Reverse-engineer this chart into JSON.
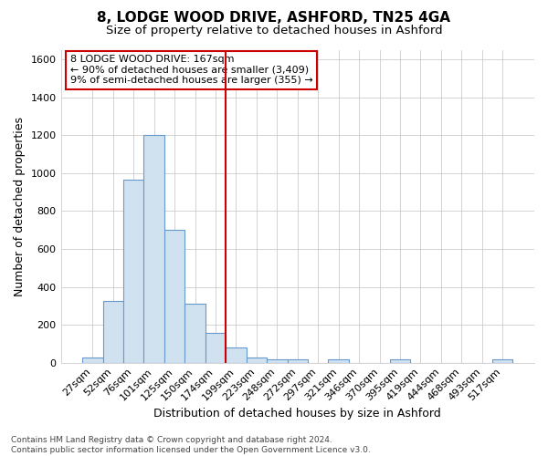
{
  "title": "8, LODGE WOOD DRIVE, ASHFORD, TN25 4GA",
  "subtitle": "Size of property relative to detached houses in Ashford",
  "xlabel": "Distribution of detached houses by size in Ashford",
  "ylabel": "Number of detached properties",
  "bar_labels": [
    "27sqm",
    "52sqm",
    "76sqm",
    "101sqm",
    "125sqm",
    "150sqm",
    "174sqm",
    "199sqm",
    "223sqm",
    "248sqm",
    "272sqm",
    "297sqm",
    "321sqm",
    "346sqm",
    "370sqm",
    "395sqm",
    "419sqm",
    "444sqm",
    "468sqm",
    "493sqm",
    "517sqm"
  ],
  "bar_values": [
    25,
    325,
    965,
    1200,
    700,
    310,
    155,
    80,
    25,
    15,
    15,
    0,
    15,
    0,
    0,
    15,
    0,
    0,
    0,
    0,
    15
  ],
  "bar_color": "#d0e2f0",
  "bar_edge_color": "#6699cc",
  "vline_x_index": 6,
  "vline_color": "#cc0000",
  "ylim": [
    0,
    1650
  ],
  "yticks": [
    0,
    200,
    400,
    600,
    800,
    1000,
    1200,
    1400,
    1600
  ],
  "annotation_text": "8 LODGE WOOD DRIVE: 167sqm\n← 90% of detached houses are smaller (3,409)\n9% of semi-detached houses are larger (355) →",
  "annotation_box_color": "#ffffff",
  "annotation_box_edge_color": "#cc0000",
  "footer_text": "Contains HM Land Registry data © Crown copyright and database right 2024.\nContains public sector information licensed under the Open Government Licence v3.0.",
  "bg_color": "#ffffff",
  "plot_bg_color": "#ffffff",
  "title_fontsize": 11,
  "subtitle_fontsize": 9.5,
  "tick_fontsize": 8,
  "ylabel_fontsize": 9,
  "xlabel_fontsize": 9,
  "footer_fontsize": 6.5,
  "grid_color": "#cccccc"
}
